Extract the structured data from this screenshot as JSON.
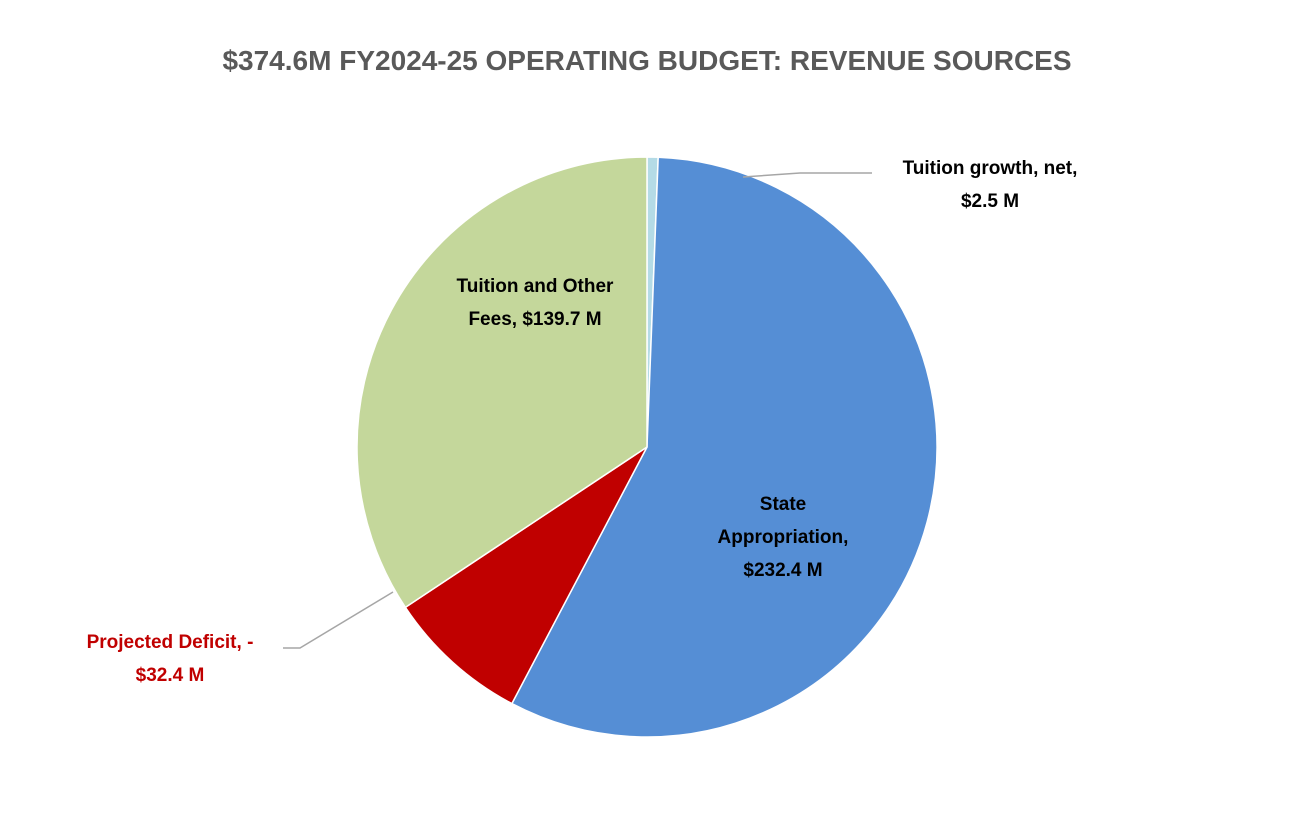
{
  "chart_data": {
    "type": "pie",
    "title": "$374.6M FY2024-25 OPERATING BUDGET: REVENUE SOURCES",
    "slices": [
      {
        "name": "Tuition growth, net",
        "value": 2.5,
        "color": "#b4dbe6",
        "label_lines": [
          "Tuition growth, net,",
          "$2.5 M"
        ],
        "label_color": "#000000"
      },
      {
        "name": "State Appropriation",
        "value": 232.4,
        "color": "#558ed5",
        "label_lines": [
          "State",
          "Appropriation,",
          "$232.4 M"
        ],
        "label_color": "#000000"
      },
      {
        "name": "Projected Deficit",
        "value": 32.4,
        "color": "#c00000",
        "label_lines": [
          "Projected Deficit, -",
          "$32.4 M"
        ],
        "label_color": "#c00000"
      },
      {
        "name": "Tuition and Other Fees",
        "value": 139.7,
        "color": "#c4d79b",
        "label_lines": [
          "Tuition and Other",
          "Fees, $139.7 M"
        ],
        "label_color": "#000000"
      }
    ],
    "start": "12 o'clock",
    "direction": "clockwise",
    "legend": "none"
  }
}
